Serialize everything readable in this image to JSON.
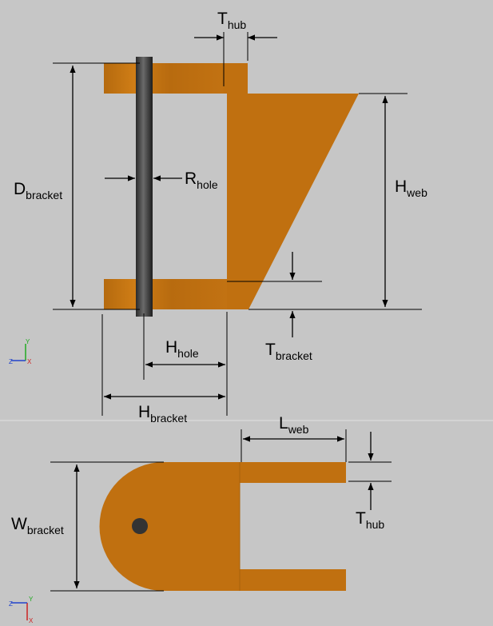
{
  "colors": {
    "background": "#c6c6c6",
    "bracket": "#c07010",
    "bracket_edge": "#8a4e08",
    "pin": "#3a3a3a",
    "hole": "#333333",
    "axis_y": "#22aa22",
    "axis_z": "#2244cc",
    "axis_x": "#cc2222"
  },
  "side_view": {
    "labels": {
      "t_hub": {
        "main": "T",
        "sub": "hub"
      },
      "d_bracket": {
        "main": "D",
        "sub": "bracket"
      },
      "r_hole": {
        "main": "R",
        "sub": "hole"
      },
      "h_web": {
        "main": "H",
        "sub": "web"
      },
      "h_hole": {
        "main": "H",
        "sub": "hole"
      },
      "t_bracket": {
        "main": "T",
        "sub": "bracket"
      },
      "h_bracket": {
        "main": "H",
        "sub": "bracket"
      }
    },
    "triad": {
      "y": "Y",
      "z": "Z",
      "x": "X"
    }
  },
  "top_view": {
    "labels": {
      "l_web": {
        "main": "L",
        "sub": "web"
      },
      "w_bracket": {
        "main": "W",
        "sub": "bracket"
      },
      "t_hub": {
        "main": "T",
        "sub": "hub"
      }
    },
    "triad": {
      "y": "Y",
      "z": "Z",
      "x": "X"
    }
  }
}
